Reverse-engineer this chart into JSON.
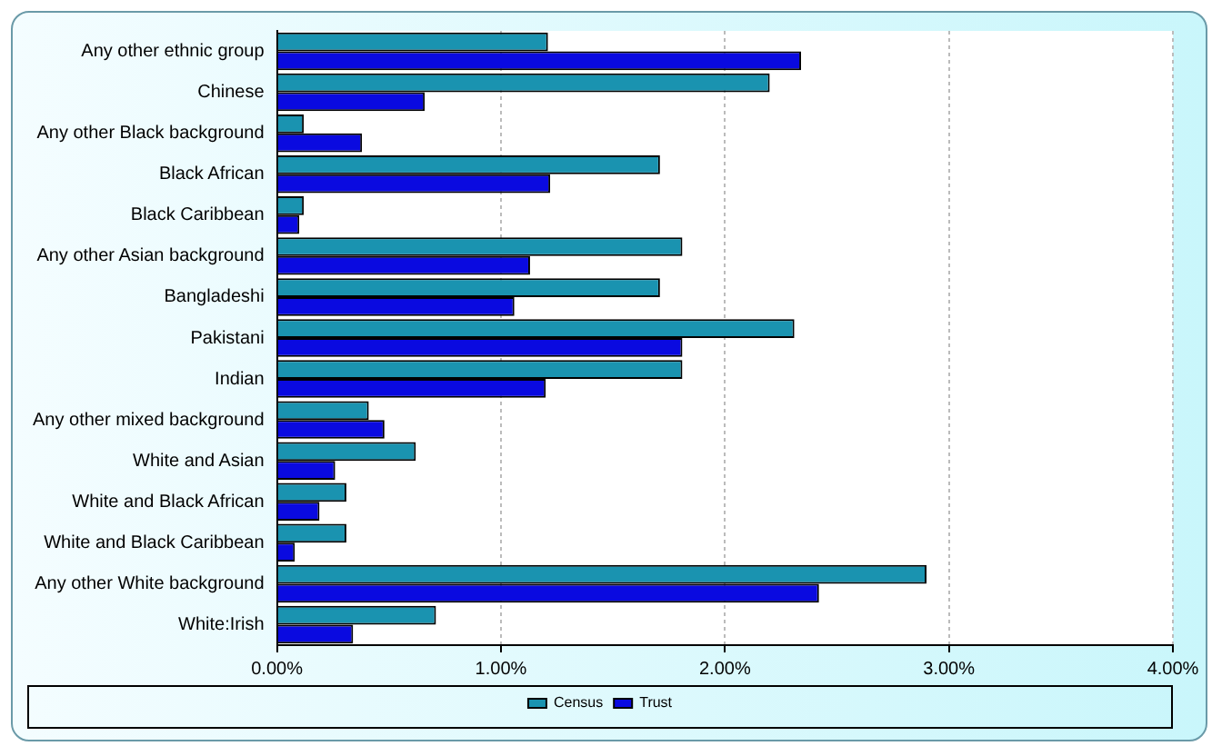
{
  "chart_data": {
    "type": "bar",
    "orientation": "horizontal",
    "categories": [
      "Any other ethnic group",
      "Chinese",
      "Any other Black background",
      "Black African",
      "Black Caribbean",
      "Any other Asian background",
      "Bangladeshi",
      "Pakistani",
      "Indian",
      "Any other mixed background",
      "White and Asian",
      "White and Black African",
      "White and Black Caribbean",
      "Any other White background",
      "White:Irish"
    ],
    "series": [
      {
        "name": "Census",
        "color": "#1a93b0",
        "values": [
          1.21,
          2.2,
          0.12,
          1.71,
          0.12,
          1.81,
          1.71,
          2.31,
          1.81,
          0.41,
          0.62,
          0.31,
          0.31,
          2.9,
          0.71
        ]
      },
      {
        "name": "Trust",
        "color": "#0a0ae0",
        "values": [
          2.34,
          0.66,
          0.38,
          1.22,
          0.1,
          1.13,
          1.06,
          1.81,
          1.2,
          0.48,
          0.26,
          0.19,
          0.08,
          2.42,
          0.34
        ]
      }
    ],
    "xlim": [
      0,
      4
    ],
    "xticks": [
      {
        "value": 0,
        "label": "0.00%"
      },
      {
        "value": 1,
        "label": "1.00%"
      },
      {
        "value": 2,
        "label": "2.00%"
      },
      {
        "value": 3,
        "label": "3.00%"
      },
      {
        "value": 4,
        "label": "4.00%"
      }
    ],
    "grid": "x",
    "legend": "bottom"
  }
}
